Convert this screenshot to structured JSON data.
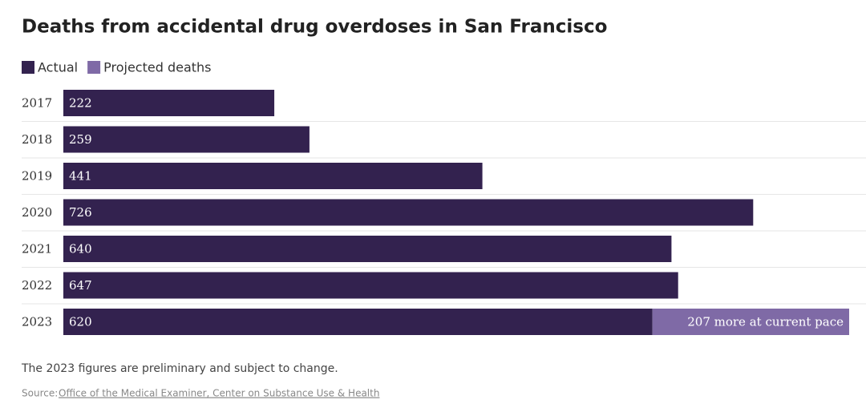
{
  "chart_data": {
    "type": "stacked_bar_horizontal",
    "title": "Deaths from accidental drug overdoses in San Francisco",
    "categories": [
      "2017",
      "2018",
      "2019",
      "2020",
      "2021",
      "2022",
      "2023"
    ],
    "series": [
      {
        "name": "Actual",
        "color": "#33224f",
        "values": [
          222,
          259,
          441,
          726,
          640,
          647,
          620
        ]
      },
      {
        "name": "Projected deaths",
        "color": "#7f6aa6",
        "values": [
          null,
          null,
          null,
          null,
          null,
          null,
          207
        ],
        "value_labels": [
          null,
          null,
          null,
          null,
          null,
          null,
          "207 more at current pace"
        ]
      }
    ],
    "note": "The 2023 figures are preliminary and subject to change.",
    "source_label": "Source:",
    "source": "Office of the Medical Examiner, Center on Substance Use & Health"
  }
}
